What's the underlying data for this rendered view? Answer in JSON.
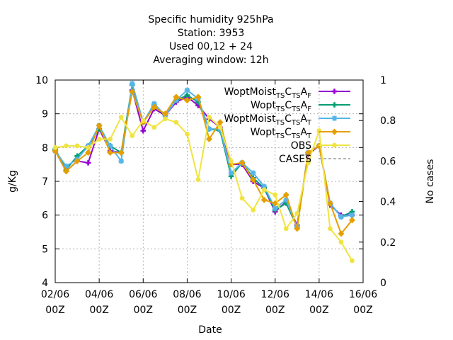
{
  "chart_data": {
    "type": "line",
    "title_lines": [
      "Specific humidity 925hPa",
      "Station:     3953",
      "Used  00,12  + 24",
      "Averaging window: 12h"
    ],
    "xlabel": "Date",
    "ylabel": "g/Kg",
    "y2label": "No cases",
    "xlim": [
      0,
      28
    ],
    "ylim": [
      4,
      10
    ],
    "y2lim": [
      0,
      1
    ],
    "x_ticks": [
      {
        "x": 0,
        "line1": "02/06",
        "line2": "00Z"
      },
      {
        "x": 4,
        "line1": "04/06",
        "line2": "00Z"
      },
      {
        "x": 8,
        "line1": "06/06",
        "line2": "00Z"
      },
      {
        "x": 12,
        "line1": "08/06",
        "line2": "00Z"
      },
      {
        "x": 16,
        "line1": "10/06",
        "line2": "00Z"
      },
      {
        "x": 20,
        "line1": "12/06",
        "line2": "00Z"
      },
      {
        "x": 24,
        "line1": "14/06",
        "line2": "00Z"
      },
      {
        "x": 28,
        "line1": "16/06",
        "line2": "00Z"
      }
    ],
    "y_ticks": [
      4,
      5,
      6,
      7,
      8,
      9,
      10
    ],
    "y2_ticks": [
      "0",
      "0.2",
      "0.4",
      "0.6",
      "0.8",
      "1"
    ],
    "y2_tick_values": [
      0,
      0.2,
      0.4,
      0.6,
      0.8,
      1
    ],
    "grid": true,
    "legend_position": "top-right",
    "series": [
      {
        "legend_main": "WoptMoist",
        "legend_sub1": "TS",
        "legend_mid1": "C",
        "legend_sub2": "TS",
        "legend_mid2": "A",
        "legend_sub3": "F",
        "color": "#9400d3",
        "marker": "plus",
        "x": [
          0,
          1,
          2,
          3,
          4,
          5,
          6,
          7,
          8,
          9,
          10,
          11,
          12,
          13,
          14,
          15,
          16,
          17,
          18,
          19,
          20,
          21,
          22,
          23,
          24,
          25,
          26,
          27
        ],
        "y": [
          7.9,
          7.3,
          7.6,
          7.55,
          8.55,
          7.9,
          7.85,
          9.7,
          8.5,
          9.15,
          8.95,
          9.35,
          9.5,
          9.25,
          8.85,
          8.6,
          7.5,
          7.5,
          7.0,
          6.8,
          6.1,
          6.4,
          5.7,
          7.8,
          8.05,
          6.3,
          6.0,
          6.0
        ]
      },
      {
        "legend_main": "Wopt",
        "legend_sub1": "TS",
        "legend_mid1": "C",
        "legend_sub2": "TS",
        "legend_mid2": "A",
        "legend_sub3": "F",
        "color": "#009e73",
        "marker": "plus",
        "x": [
          0,
          1,
          2,
          3,
          4,
          5,
          6,
          7,
          8,
          9,
          10,
          11,
          12,
          13,
          14,
          15,
          16,
          17,
          18,
          19,
          20,
          21,
          22,
          23,
          24,
          25,
          26,
          27
        ],
        "y": [
          7.95,
          7.35,
          7.75,
          8.05,
          8.55,
          8.05,
          7.85,
          9.85,
          8.75,
          9.25,
          8.95,
          9.4,
          9.55,
          9.35,
          8.55,
          8.5,
          7.15,
          7.55,
          7.1,
          6.8,
          6.15,
          6.35,
          5.65,
          7.85,
          8.05,
          6.35,
          5.95,
          6.1
        ]
      },
      {
        "legend_main": "WoptMoist",
        "legend_sub1": "TS",
        "legend_mid1": "C",
        "legend_sub2": "TS",
        "legend_mid2": "A",
        "legend_sub3": "T",
        "color": "#56b4e9",
        "marker": "star",
        "x": [
          0,
          1,
          2,
          3,
          4,
          5,
          6,
          7,
          8,
          9,
          10,
          11,
          12,
          13,
          14,
          15,
          16,
          17,
          18,
          19,
          20,
          21,
          22,
          23,
          24,
          25,
          26,
          27
        ],
        "y": [
          7.9,
          7.45,
          7.65,
          8.05,
          8.65,
          8.05,
          7.6,
          9.9,
          8.75,
          9.3,
          8.95,
          9.4,
          9.7,
          9.45,
          8.55,
          8.55,
          7.25,
          7.55,
          7.25,
          6.85,
          6.2,
          6.45,
          5.65,
          7.85,
          8.05,
          6.35,
          5.95,
          6.0
        ]
      },
      {
        "legend_main": "Wopt",
        "legend_sub1": "TS",
        "legend_mid1": "C",
        "legend_sub2": "TS",
        "legend_mid2": "A",
        "legend_sub3": "T",
        "color": "#e69f00",
        "marker": "diamond",
        "x": [
          0,
          1,
          2,
          3,
          4,
          5,
          6,
          7,
          8,
          9,
          10,
          11,
          12,
          13,
          14,
          15,
          16,
          17,
          18,
          19,
          20,
          21,
          22,
          23,
          24,
          25,
          26,
          27
        ],
        "y": [
          7.9,
          7.3,
          7.6,
          7.85,
          8.65,
          7.85,
          7.85,
          9.65,
          8.75,
          9.2,
          9.0,
          9.5,
          9.4,
          9.5,
          8.25,
          8.75,
          7.5,
          7.55,
          7.05,
          6.45,
          6.35,
          6.6,
          5.6,
          7.85,
          8.05,
          6.35,
          5.45,
          5.85
        ]
      },
      {
        "legend_main": "OBS",
        "color": "#f0e442",
        "marker": "circle",
        "x": [
          0,
          1,
          2,
          3,
          4,
          5,
          6,
          7,
          8,
          9,
          10,
          11,
          12,
          13,
          14,
          15,
          16,
          17,
          18,
          19,
          20,
          21,
          22,
          23,
          24,
          25,
          26,
          27
        ],
        "y": [
          8.0,
          8.05,
          8.05,
          8.0,
          8.25,
          8.25,
          8.9,
          8.35,
          8.8,
          8.6,
          8.85,
          8.75,
          8.4,
          7.05,
          8.9,
          8.6,
          7.6,
          6.5,
          6.15,
          6.75,
          6.6,
          5.6,
          6.05,
          7.55,
          8.5,
          5.6,
          5.2,
          4.65
        ]
      },
      {
        "legend_main": "CASES",
        "color": "#888888",
        "marker": "none",
        "dashed": true,
        "x": [],
        "y": []
      }
    ]
  }
}
